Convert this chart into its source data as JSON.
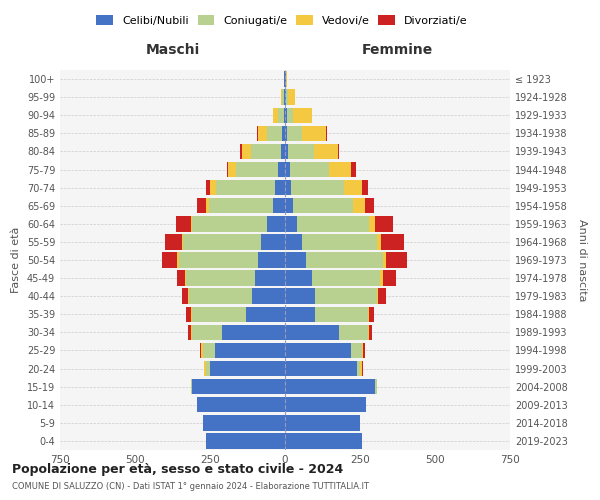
{
  "age_groups": [
    "0-4",
    "5-9",
    "10-14",
    "15-19",
    "20-24",
    "25-29",
    "30-34",
    "35-39",
    "40-44",
    "45-49",
    "50-54",
    "55-59",
    "60-64",
    "65-69",
    "70-74",
    "75-79",
    "80-84",
    "85-89",
    "90-94",
    "95-99",
    "100+"
  ],
  "birth_years": [
    "2019-2023",
    "2014-2018",
    "2009-2013",
    "2004-2008",
    "1999-2003",
    "1994-1998",
    "1989-1993",
    "1984-1988",
    "1979-1983",
    "1974-1978",
    "1969-1973",
    "1964-1968",
    "1959-1963",
    "1954-1958",
    "1949-1953",
    "1944-1948",
    "1939-1943",
    "1934-1938",
    "1929-1933",
    "1924-1928",
    "≤ 1923"
  ],
  "colors": {
    "celibi": "#4472c4",
    "coniugati": "#b8d090",
    "vedovi": "#f5c842",
    "divorziati": "#cc2222"
  },
  "legend_labels": [
    "Celibi/Nubili",
    "Coniugati/e",
    "Vedovi/e",
    "Divorziati/e"
  ],
  "maschi": {
    "celibi": [
      265,
      275,
      295,
      310,
      250,
      235,
      210,
      130,
      110,
      100,
      90,
      80,
      60,
      40,
      35,
      25,
      15,
      10,
      5,
      4,
      2
    ],
    "coniugati": [
      0,
      0,
      0,
      5,
      15,
      40,
      100,
      180,
      210,
      230,
      265,
      260,
      250,
      215,
      195,
      140,
      100,
      50,
      20,
      5,
      0
    ],
    "vedovi": [
      0,
      0,
      0,
      0,
      5,
      5,
      5,
      5,
      5,
      5,
      5,
      5,
      5,
      10,
      20,
      25,
      30,
      30,
      15,
      5,
      1
    ],
    "divorziati": [
      0,
      0,
      0,
      0,
      0,
      5,
      10,
      15,
      20,
      25,
      50,
      55,
      50,
      30,
      15,
      5,
      5,
      5,
      0,
      0,
      0
    ]
  },
  "femmine": {
    "nubili": [
      255,
      250,
      270,
      300,
      240,
      220,
      180,
      100,
      100,
      90,
      70,
      55,
      40,
      25,
      20,
      15,
      10,
      5,
      5,
      4,
      2
    ],
    "coniugate": [
      0,
      0,
      0,
      5,
      10,
      35,
      95,
      175,
      205,
      225,
      255,
      250,
      240,
      200,
      175,
      130,
      85,
      50,
      20,
      5,
      0
    ],
    "vedove": [
      0,
      0,
      0,
      0,
      5,
      5,
      5,
      5,
      5,
      10,
      10,
      15,
      20,
      40,
      60,
      75,
      80,
      80,
      65,
      25,
      5
    ],
    "divorziate": [
      0,
      0,
      0,
      0,
      5,
      5,
      10,
      15,
      25,
      45,
      70,
      75,
      60,
      30,
      20,
      15,
      5,
      5,
      0,
      0,
      0
    ]
  },
  "title": "Popolazione per età, sesso e stato civile - 2024",
  "subtitle": "COMUNE DI SALUZZO (CN) - Dati ISTAT 1° gennaio 2024 - Elaborazione TUTTITALIA.IT",
  "xlabel_left": "Maschi",
  "xlabel_right": "Femmine",
  "ylabel_left": "Fasce di età",
  "ylabel_right": "Anni di nascita",
  "xlim": 750,
  "bg_color": "#f5f5f5",
  "grid_color": "#cccccc"
}
